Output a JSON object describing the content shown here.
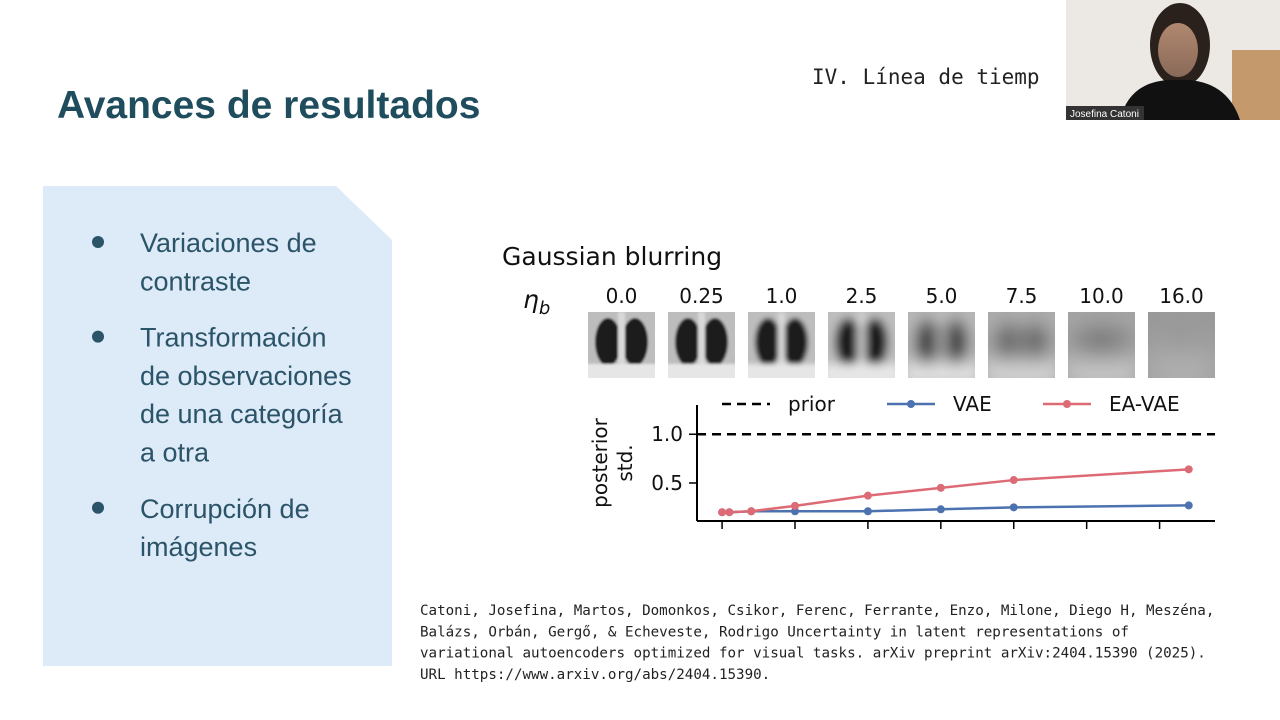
{
  "slide": {
    "title": "Avances de resultados",
    "section": "IV. Línea de tiemp",
    "bullets": [
      [
        "Variaciones de",
        "contraste"
      ],
      [
        "Transformación",
        "de observaciones",
        "de una categoría",
        "a otra"
      ],
      [
        "Corrupción de",
        "imágenes"
      ]
    ],
    "figure_title": "Gaussian blurring",
    "eta_symbol": "η",
    "eta_subscript": "b",
    "blur_levels": [
      "0.0",
      "0.25",
      "1.0",
      "2.5",
      "5.0",
      "7.5",
      "10.0",
      "16.0"
    ],
    "citation": [
      "Catoni, Josefina, Martos, Domonkos, Csikor, Ferenc, Ferrante, Enzo, Milone, Diego H, Meszéna,",
      "Balázs, Orbán, Gergő, & Echeveste, Rodrigo Uncertainty in latent representations of",
      "variational autoencoders optimized for visual tasks. arXiv preprint arXiv:2404.15390 (2025).",
      "URL https://www.arxiv.org/abs/2404.15390."
    ]
  },
  "video": {
    "participant": "Josefina Catoni"
  },
  "chart_data": {
    "type": "line",
    "ylabel_lines": [
      "posterior",
      "std."
    ],
    "x": [
      0,
      0.25,
      1,
      2.5,
      5,
      7.5,
      10,
      16
    ],
    "xlim": [
      -0.86,
      16.9
    ],
    "xticks": [
      0,
      2.5,
      5,
      7.5,
      10,
      12.5,
      15
    ],
    "ylim": [
      0.11,
      1.3
    ],
    "yticks": [
      {
        "value": 0.5,
        "label": "0.5"
      },
      {
        "value": 1.0,
        "label": "1.0"
      }
    ],
    "prior": {
      "name": "prior",
      "value": 1.0,
      "color": "#000000"
    },
    "series": [
      {
        "name": "VAE",
        "color": "#4c72b0",
        "values": [
          0.2,
          0.2,
          0.21,
          0.21,
          0.21,
          0.23,
          0.25,
          0.27
        ]
      },
      {
        "name": "EA-VAE",
        "color": "#dd6b75",
        "values": [
          0.2,
          0.2,
          0.21,
          0.265,
          0.37,
          0.45,
          0.53,
          0.64
        ]
      }
    ]
  }
}
